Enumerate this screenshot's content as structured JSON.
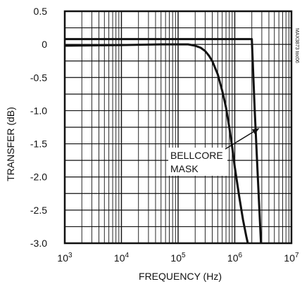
{
  "chart_data": {
    "type": "line",
    "xlabel": "FREQUENCY (Hz)",
    "ylabel": "TRANSFER (dB)",
    "x_scale": "log",
    "xlim": [
      1000,
      10000000
    ],
    "ylim": [
      -3.0,
      0.5
    ],
    "x_ticks": [
      {
        "value": 1000,
        "base": "10",
        "exp": "3"
      },
      {
        "value": 10000,
        "base": "10",
        "exp": "4"
      },
      {
        "value": 100000,
        "base": "10",
        "exp": "5"
      },
      {
        "value": 1000000,
        "base": "10",
        "exp": "6"
      },
      {
        "value": 10000000,
        "base": "10",
        "exp": "7"
      }
    ],
    "y_ticks": [
      {
        "value": 0.5,
        "label": "0.5"
      },
      {
        "value": 0,
        "label": "0"
      },
      {
        "value": -0.5,
        "label": "-0.5"
      },
      {
        "value": -1.0,
        "label": "-1.0"
      },
      {
        "value": -1.5,
        "label": "-1.5"
      },
      {
        "value": -2.0,
        "label": "-2.0"
      },
      {
        "value": -2.5,
        "label": "-2.5"
      },
      {
        "value": -3.0,
        "label": "-3.0"
      }
    ],
    "grid": true,
    "series": [
      {
        "name": "",
        "points": [
          [
            1000,
            -0.02
          ],
          [
            10000,
            -0.01
          ],
          [
            50000,
            0.0
          ],
          [
            100000,
            0.0
          ],
          [
            150000,
            0.0
          ],
          [
            200000,
            -0.02
          ],
          [
            250000,
            -0.05
          ],
          [
            300000,
            -0.1
          ],
          [
            350000,
            -0.17
          ],
          [
            400000,
            -0.25
          ],
          [
            500000,
            -0.45
          ],
          [
            600000,
            -0.7
          ],
          [
            700000,
            -0.95
          ],
          [
            800000,
            -1.25
          ],
          [
            900000,
            -1.55
          ],
          [
            1000000,
            -1.85
          ],
          [
            1200000,
            -2.3
          ],
          [
            1400000,
            -2.65
          ],
          [
            1600000,
            -2.9
          ],
          [
            1700000,
            -3.0
          ]
        ]
      },
      {
        "name": "BELLCORE MASK",
        "points": [
          [
            1000,
            0.08
          ],
          [
            2000000,
            0.08
          ],
          [
            2250000,
            -1.0
          ],
          [
            2550000,
            -2.0
          ],
          [
            2900000,
            -3.0
          ]
        ]
      }
    ],
    "annotations": [
      {
        "line1": "BELLCORE",
        "line2": "MASK",
        "arrow_to": [
          2650000,
          -1.27
        ]
      }
    ],
    "watermark": "MAX3873 toc06"
  }
}
